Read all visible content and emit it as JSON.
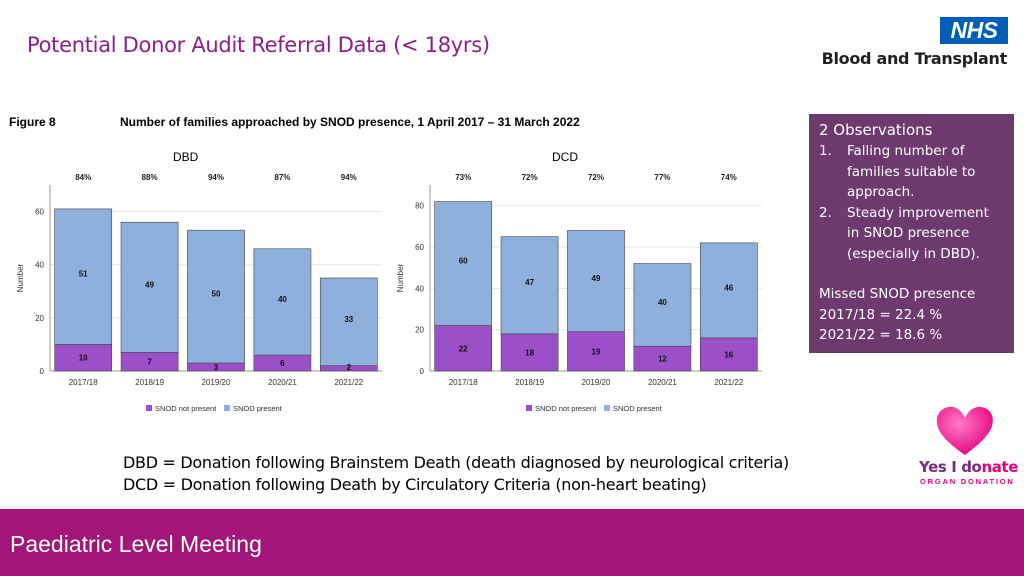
{
  "slide": {
    "title": "Potential Donor Audit Referral Data (< 18yrs)",
    "footer": "Paediatric Level Meeting"
  },
  "branding": {
    "nhs": "NHS",
    "org": "Blood and Transplant",
    "campaign_part1": "Yes I do",
    "campaign_part2": "nate",
    "campaign_sub": "ORGAN DONATION"
  },
  "figure": {
    "label": "Figure 8",
    "caption": "Number of families approached by SNOD presence, 1 April 2017 – 31 March 2022"
  },
  "observations": {
    "heading": "2 Observations",
    "items": [
      {
        "num": "1.",
        "text": "Falling number of families suitable to approach."
      },
      {
        "num": "2.",
        "text": "Steady improvement in SNOD presence (especially in DBD)."
      }
    ],
    "missed_heading": "Missed SNOD presence",
    "missed_lines": [
      "2017/18 = 22.4 %",
      "2021/22 = 18.6 %"
    ]
  },
  "definitions": [
    "DBD = Donation following Brainstem Death (death diagnosed by neurological criteria)",
    "DCD = Donation following Death by Circulatory Criteria (non-heart beating)"
  ],
  "colors": {
    "not_present": "#9b4fc9",
    "present": "#8fb0dd",
    "title": "#8a1f8a",
    "footer": "#a3157a",
    "obs_box": "#6e3a6e"
  },
  "chart_data": [
    {
      "type": "bar",
      "stacked": true,
      "title": "DBD",
      "ylabel": "Number",
      "categories": [
        "2017/18",
        "2018/19",
        "2019/20",
        "2020/21",
        "2021/22"
      ],
      "ylim": [
        0,
        70
      ],
      "yticks": [
        0,
        20,
        40,
        60
      ],
      "percent_labels": [
        "84%",
        "88%",
        "94%",
        "87%",
        "94%"
      ],
      "series": [
        {
          "name": "SNOD not present",
          "values": [
            10,
            7,
            3,
            6,
            2
          ]
        },
        {
          "name": "SNOD present",
          "values": [
            51,
            49,
            50,
            40,
            33
          ]
        }
      ],
      "legend": "bottom"
    },
    {
      "type": "bar",
      "stacked": true,
      "title": "DCD",
      "ylabel": "Number",
      "categories": [
        "2017/18",
        "2018/19",
        "2019/20",
        "2020/21",
        "2021/22"
      ],
      "ylim": [
        0,
        90
      ],
      "yticks": [
        0,
        20,
        40,
        60,
        80
      ],
      "percent_labels": [
        "73%",
        "72%",
        "72%",
        "77%",
        "74%"
      ],
      "series": [
        {
          "name": "SNOD not present",
          "values": [
            22,
            18,
            19,
            12,
            16
          ]
        },
        {
          "name": "SNOD present",
          "values": [
            60,
            47,
            49,
            40,
            46
          ]
        }
      ],
      "legend": "bottom"
    }
  ]
}
